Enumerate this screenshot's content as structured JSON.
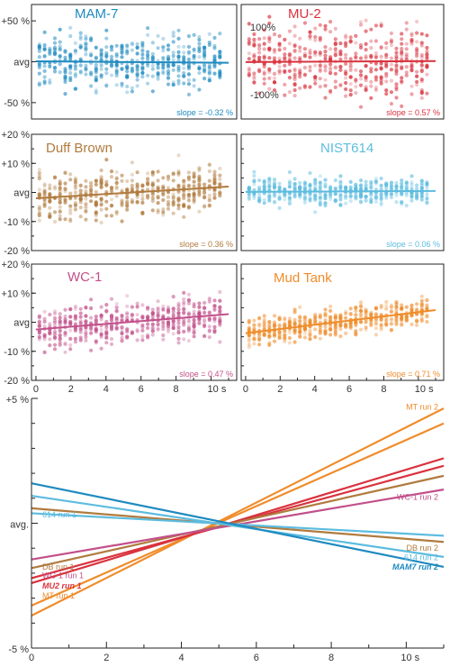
{
  "chart_data": [
    {
      "type": "scatter",
      "title": "MAM-7",
      "color": "#1f8ac0",
      "slope_label": "slope = -0.32 %",
      "ytick_labels": [
        "+50 %",
        "avg",
        "-50 %"
      ],
      "ytick_values": [
        50,
        0,
        -50
      ],
      "ylim": [
        -70,
        70
      ],
      "xlim": [
        -0.1,
        11
      ],
      "inner_labels": [],
      "fit_line": [
        [
          0,
          0.5
        ],
        [
          11,
          -1.3
        ]
      ],
      "spread": 38
    },
    {
      "type": "scatter",
      "title": "MU-2",
      "color": "#d9323e",
      "slope_label": "slope = 0.57 %",
      "ytick_labels": [],
      "ytick_values": [],
      "inner_labels": [
        "100%",
        "-100%"
      ],
      "inner_values": [
        100,
        -100
      ],
      "ylim": [
        -170,
        170
      ],
      "xlim": [
        -0.1,
        11
      ],
      "fit_line": [
        [
          0,
          -1
        ],
        [
          11,
          2
        ]
      ],
      "spread": 120
    },
    {
      "type": "scatter",
      "title": "Duff Brown",
      "color": "#b07b3e",
      "slope_label": "slope = 0.36 %",
      "ytick_labels": [
        "+20 %",
        "+10 %",
        "avg",
        "-10 %",
        "-20 %"
      ],
      "ytick_values": [
        20,
        10,
        0,
        -10,
        -20
      ],
      "ylim": [
        -20,
        20
      ],
      "xlim": [
        -0.1,
        11
      ],
      "inner_labels": [],
      "fit_line": [
        [
          0,
          -2
        ],
        [
          11,
          2
        ]
      ],
      "spread": 9
    },
    {
      "type": "scatter",
      "title": "NIST614",
      "color": "#5dbcdf",
      "slope_label": "slope = 0.06 %",
      "ytick_labels": [],
      "ytick_values": [],
      "ylim": [
        -20,
        20
      ],
      "xlim": [
        -0.1,
        11
      ],
      "inner_labels": [],
      "fit_line": [
        [
          0,
          0.2
        ],
        [
          11,
          0.5
        ]
      ],
      "spread": 5
    },
    {
      "type": "scatter",
      "title": "WC-1",
      "color": "#c2508a",
      "slope_label": "slope = 0.47 %",
      "ytick_labels": [
        "+20 %",
        "+10 %",
        "avg",
        "-10 %",
        "-20 %"
      ],
      "ytick_values": [
        20,
        10,
        0,
        -10,
        -20
      ],
      "xtick_labels": [
        "0",
        "2",
        "4",
        "6",
        "8",
        "10 s"
      ],
      "xtick_values": [
        0,
        2,
        4,
        6,
        8,
        10
      ],
      "ylim": [
        -20,
        20
      ],
      "xlim": [
        -0.1,
        11
      ],
      "inner_labels": [],
      "fit_line": [
        [
          0,
          -2.5
        ],
        [
          11,
          2.8
        ]
      ],
      "spread": 8
    },
    {
      "type": "scatter",
      "title": "Mud Tank",
      "color": "#ef8c2b",
      "slope_label": "slope = 0.71 %",
      "ytick_labels": [],
      "ytick_values": [],
      "xtick_labels": [
        "0",
        "2",
        "4",
        "6",
        "8",
        "10 s"
      ],
      "xtick_values": [
        0,
        2,
        4,
        6,
        8,
        10
      ],
      "ylim": [
        -20,
        20
      ],
      "xlim": [
        -0.1,
        11
      ],
      "inner_labels": [],
      "fit_line": [
        [
          0,
          -3.8
        ],
        [
          11,
          4.2
        ]
      ],
      "spread": 5
    },
    {
      "type": "line",
      "ytick_labels": [
        "+5 %",
        "avg.",
        "-5 %"
      ],
      "ytick_values": [
        5,
        0,
        -5
      ],
      "xtick_labels": [
        "0",
        "2",
        "4",
        "6",
        "8",
        "10 s"
      ],
      "xtick_values": [
        0,
        2,
        4,
        6,
        8,
        10
      ],
      "xlim": [
        0,
        11
      ],
      "ylim": [
        -5,
        5
      ],
      "series": [
        {
          "name": "MT run 2",
          "color": "#ef8c2b",
          "values": [
            [
              0,
              -3.7
            ],
            [
              11,
              4.6
            ]
          ]
        },
        {
          "color": "#ef8c2b",
          "values": [
            [
              0,
              -3.3
            ],
            [
              11,
              4.0
            ]
          ]
        },
        {
          "color": "#d9323e",
          "values": [
            [
              0,
              -2.4
            ],
            [
              11,
              2.6
            ]
          ]
        },
        {
          "color": "#d9323e",
          "values": [
            [
              0,
              -2.2
            ],
            [
              11,
              2.3
            ]
          ]
        },
        {
          "color": "#b07b3e",
          "values": [
            [
              0,
              -1.8
            ],
            [
              11,
              1.9
            ]
          ]
        },
        {
          "name": "WC-1 run 2",
          "color": "#c2508a",
          "values": [
            [
              0,
              -1.45
            ],
            [
              11,
              1.35
            ]
          ]
        },
        {
          "name": "DB run 2",
          "color": "#b07b3e",
          "values": [
            [
              0,
              0.6
            ],
            [
              11,
              -0.75
            ]
          ]
        },
        {
          "name": "614 run 1",
          "color": "#5dbcdf",
          "values": [
            [
              0,
              0.4
            ],
            [
              11,
              -0.5
            ]
          ]
        },
        {
          "name": "614 run 2",
          "color": "#5dbcdf",
          "values": [
            [
              0,
              1.1
            ],
            [
              11,
              -1.35
            ]
          ]
        },
        {
          "name": "MAM7 run 2",
          "color": "#1f8ac0",
          "values": [
            [
              0,
              1.6
            ],
            [
              11,
              -1.75
            ]
          ]
        }
      ],
      "left_labels": [
        {
          "text": "614 run 1",
          "color": "#5dbcdf",
          "y": 0.35
        },
        {
          "text": "DB run 1",
          "color": "#b07b3e",
          "y": -1.75
        },
        {
          "text": "WC-1 run 1",
          "color": "#c2508a",
          "y": -2.1
        },
        {
          "text": "MU2 run 1",
          "color": "#d9323e",
          "y": -2.5,
          "bold": true
        },
        {
          "text": "MT run 1",
          "color": "#ef8c2b",
          "y": -2.9
        }
      ],
      "right_labels": [
        {
          "text": "MT run 2",
          "color": "#ef8c2b",
          "y": 4.65
        },
        {
          "text": "WC-1 run 2",
          "color": "#c2508a",
          "y": 1.05
        },
        {
          "text": "DB run 2",
          "color": "#b07b3e",
          "y": -1.0
        },
        {
          "text": "614 run 2",
          "color": "#5dbcdf",
          "y": -1.38
        },
        {
          "text": "MAM7 run 2",
          "color": "#1f8ac0",
          "y": -1.75,
          "bold": true
        }
      ]
    }
  ]
}
